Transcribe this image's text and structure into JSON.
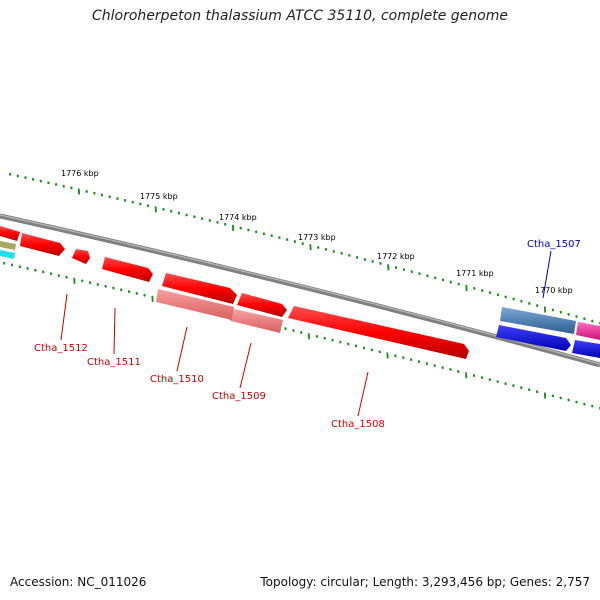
{
  "title": "Chloroherpeton thalassium ATCC 35110, complete genome",
  "accession": "Accession: NC_011026",
  "summary": "Topology: circular; Length: 3,293,456 bp; Genes: 2,757",
  "colors": {
    "backbone": "#808080",
    "tick": "#1a8a1a",
    "forward_gene": "#ff0000",
    "pseudo_gene": "#f08080",
    "reverse_label": "#cc0000",
    "forward_label": "#0000bb",
    "blue_gene": "#0000ee",
    "steel_gene": "#4a7fb5",
    "magenta_gene": "#ff2fa0"
  },
  "ticks": [
    {
      "label": "1776 kbp"
    },
    {
      "label": "1775 kbp"
    },
    {
      "label": "1774 kbp"
    },
    {
      "label": "1773 kbp"
    },
    {
      "label": "1772 kbp"
    },
    {
      "label": "1771 kbp"
    },
    {
      "label": "1770 kbp"
    }
  ],
  "gene_labels": [
    {
      "name": "Ctha_1512"
    },
    {
      "name": "Ctha_1511"
    },
    {
      "name": "Ctha_1510"
    },
    {
      "name": "Ctha_1509"
    },
    {
      "name": "Ctha_1508"
    },
    {
      "name": "Ctha_1507"
    }
  ]
}
